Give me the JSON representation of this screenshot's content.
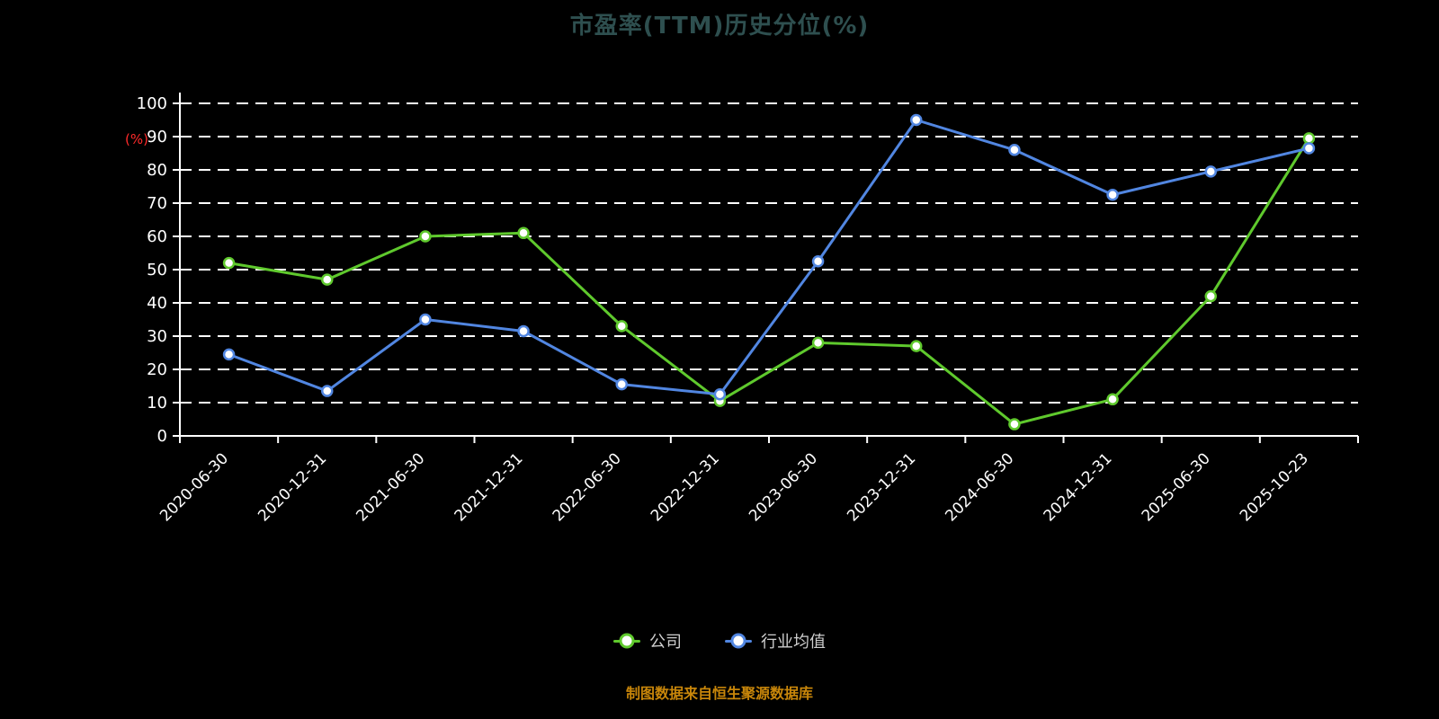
{
  "title": "市盈率(TTM)历史分位(%)",
  "footer": "制图数据来自恒生聚源数据库",
  "legend": {
    "items": [
      {
        "key": "company",
        "label": "公司",
        "color": "#5fc92d"
      },
      {
        "key": "industry-average",
        "label": "行业均值",
        "color": "#5186e1"
      }
    ]
  },
  "colors": {
    "background": "#000000",
    "axis": "#ffffff",
    "grid": "#ffffff",
    "title": "#2e4f4f",
    "footer": "#c8860a",
    "y_unit": "#ff2a2a",
    "company": "#5fc92d",
    "industry": "#5186e1"
  },
  "chart_data": {
    "type": "line",
    "title": "市盈率(TTM)历史分位(%)",
    "xlabel": "",
    "ylabel": "(%)",
    "ylim": [
      0,
      100
    ],
    "yticks": [
      0,
      10,
      20,
      30,
      40,
      50,
      60,
      70,
      80,
      90,
      100
    ],
    "grid": true,
    "legend_position": "bottom",
    "categories": [
      "2020-06-30",
      "2020-12-31",
      "2021-06-30",
      "2021-12-31",
      "2022-06-30",
      "2022-12-31",
      "2023-06-30",
      "2023-12-31",
      "2024-06-30",
      "2024-12-31",
      "2025-06-30",
      "2025-10-23"
    ],
    "series": [
      {
        "name": "公司",
        "color": "#5fc92d",
        "values": [
          52,
          47,
          60,
          61,
          33,
          10.5,
          28,
          27,
          3.5,
          11,
          42,
          89.5
        ]
      },
      {
        "name": "行业均值",
        "color": "#5186e1",
        "values": [
          24.5,
          13.5,
          35,
          31.5,
          15.5,
          12.5,
          52.5,
          95,
          86,
          72.5,
          79.5,
          86.5
        ]
      }
    ]
  }
}
